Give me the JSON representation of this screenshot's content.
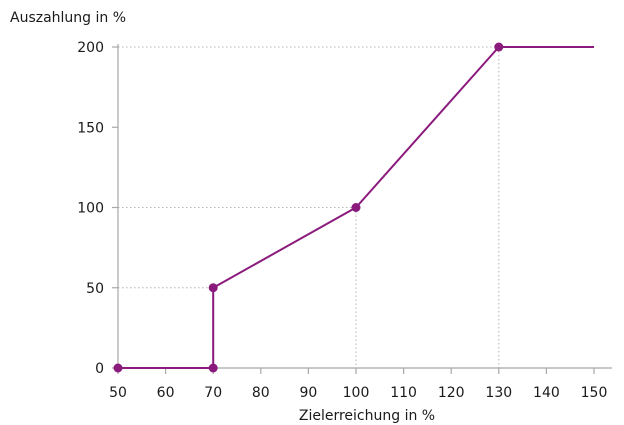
{
  "chart_data": {
    "type": "line",
    "xlabel": "Zielerreichung in %",
    "ylabel": "Auszahlung in %",
    "xlim": [
      50,
      150
    ],
    "ylim": [
      0,
      200
    ],
    "x_ticks": [
      "50",
      "60",
      "70",
      "80",
      "90",
      "100",
      "110",
      "120",
      "130",
      "140",
      "150"
    ],
    "y_ticks": [
      "0",
      "50",
      "100",
      "150",
      "200"
    ],
    "grid": "dotted reference lines at marked points",
    "series": [
      {
        "color": "#8b1a7d",
        "points": [
          {
            "x": 50,
            "y": 0,
            "marker": true
          },
          {
            "x": 70,
            "y": 0,
            "marker": true
          },
          {
            "x": 70,
            "y": 50,
            "marker": true
          },
          {
            "x": 100,
            "y": 100,
            "marker": true
          },
          {
            "x": 130,
            "y": 200,
            "marker": true
          },
          {
            "x": 150,
            "y": 200,
            "marker": false
          }
        ]
      }
    ],
    "guides": [
      {
        "x": 70,
        "y": 50
      },
      {
        "x": 100,
        "y": 100
      },
      {
        "x": 130,
        "y": 200
      }
    ]
  }
}
